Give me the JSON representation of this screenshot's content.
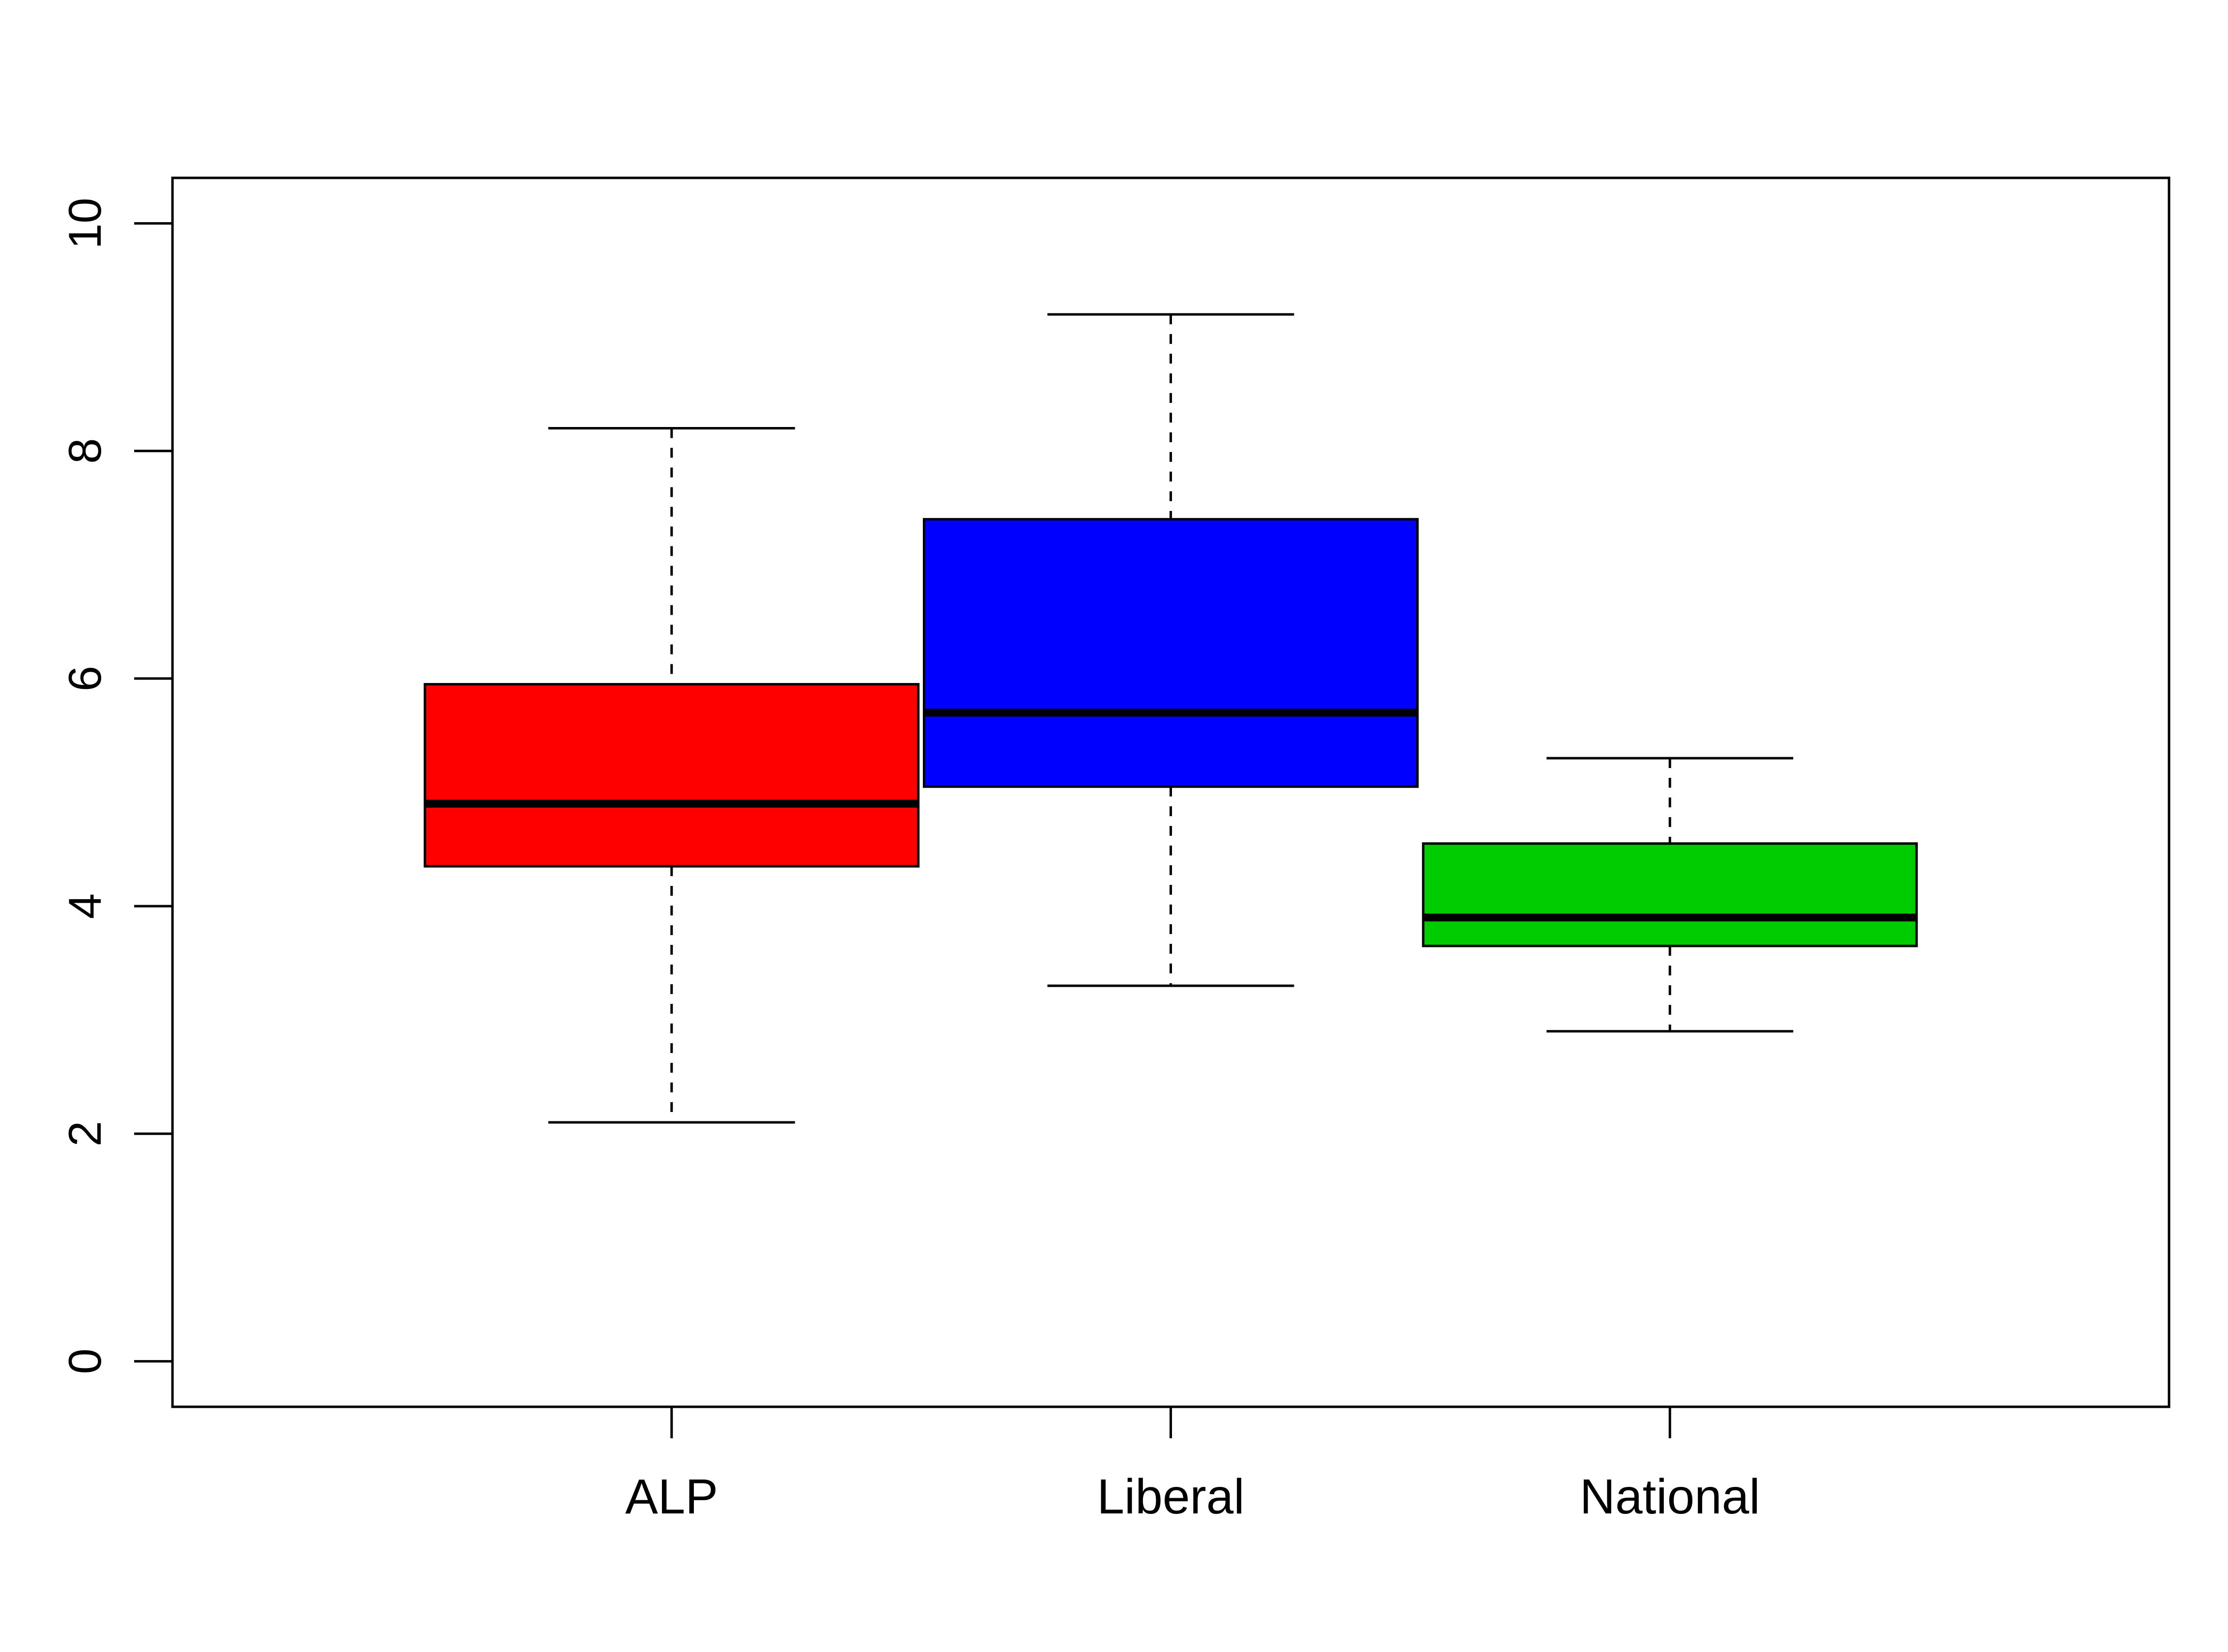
{
  "chart_data": {
    "type": "boxplot",
    "title": "",
    "xlabel": "",
    "ylabel": "",
    "ylim": [
      -0.4,
      10.4
    ],
    "y_ticks": [
      "0",
      "2",
      "4",
      "6",
      "8",
      "10"
    ],
    "grid": false,
    "legend": "none",
    "categories": [
      "ALP",
      "Liberal",
      "National"
    ],
    "series": [
      {
        "label": "ALP",
        "color": "#ff0000",
        "whisker_low": 2.1,
        "q1": 4.35,
        "median": 4.9,
        "q3": 5.95,
        "whisker_high": 8.2
      },
      {
        "label": "Liberal",
        "color": "#0000ff",
        "whisker_low": 3.3,
        "q1": 5.05,
        "median": 5.7,
        "q3": 7.4,
        "whisker_high": 9.2
      },
      {
        "label": "National",
        "color": "#00cd00",
        "whisker_low": 2.9,
        "q1": 3.65,
        "median": 3.9,
        "q3": 4.55,
        "whisker_high": 5.3
      }
    ]
  }
}
